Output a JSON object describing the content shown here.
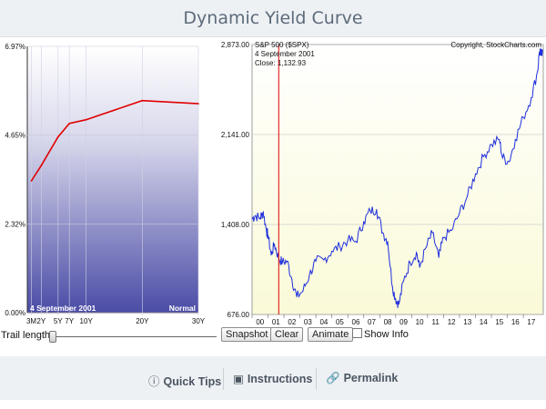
{
  "page": {
    "title": "Dynamic Yield Curve"
  },
  "yield_chart": {
    "y_ticks": [
      "6.97%",
      "4.65%",
      "2.32%",
      "0.00%"
    ],
    "maturities": [
      "3M",
      "2Y",
      "5Y",
      "7Y",
      "10Y",
      "20Y",
      "30Y"
    ],
    "date_label": "4  September 2001",
    "curve_label": "Normal",
    "curve_color": "#e00000"
  },
  "sp_chart": {
    "title": "S&P 500 ($SPX)",
    "copyright": "Copyright, StockCharts.com",
    "date_text": "4  September 2001",
    "close_text": "Close: 1,132.93",
    "y_ticks": [
      "2,873.00",
      "2,141.00",
      "1,408.00",
      "676.00"
    ],
    "x_ticks": [
      "00",
      "01",
      "02",
      "03",
      "04",
      "05",
      "06",
      "07",
      "08",
      "09",
      "10",
      "11",
      "12",
      "13",
      "14",
      "15",
      "16",
      "17"
    ],
    "line_color": "#1f2fdc",
    "marker_color": "#e00000"
  },
  "chart_data": [
    {
      "type": "line",
      "ylim": [
        0,
        6.97
      ],
      "categories": [
        "3M",
        "2Y",
        "5Y",
        "7Y",
        "10Y",
        "20Y",
        "30Y"
      ],
      "series": [
        {
          "values": [
            3.45,
            3.85,
            4.6,
            4.95,
            5.05,
            5.55,
            5.47
          ]
        }
      ]
    },
    {
      "type": "line",
      "title": "S&P 500 ($SPX)",
      "ylim": [
        676,
        2873
      ],
      "x": [
        2000,
        2000.2,
        2000.5,
        2000.7,
        2000.9,
        2001.0,
        2001.2,
        2001.4,
        2001.67,
        2001.9,
        2002.2,
        2002.5,
        2002.8,
        2003.2,
        2003.6,
        2004.0,
        2004.5,
        2005.0,
        2005.5,
        2006.0,
        2006.5,
        2007.0,
        2007.4,
        2007.8,
        2008.2,
        2008.5,
        2008.8,
        2009.0,
        2009.2,
        2009.5,
        2009.9,
        2010.3,
        2010.5,
        2010.9,
        2011.3,
        2011.7,
        2012.0,
        2012.5,
        2013.0,
        2013.5,
        2014.0,
        2014.5,
        2015.0,
        2015.5,
        2015.7,
        2016.1,
        2016.5,
        2017.0,
        2017.5,
        2017.9,
        2018.0,
        2018.1,
        2018.2
      ],
      "series": [
        {
          "values": [
            1455,
            1480,
            1460,
            1510,
            1360,
            1320,
            1160,
            1250,
            1132.93,
            1100,
            1110,
            960,
            820,
            870,
            1000,
            1110,
            1120,
            1190,
            1230,
            1280,
            1270,
            1430,
            1520,
            1530,
            1340,
            1270,
            900,
            800,
            760,
            950,
            1100,
            1180,
            1060,
            1220,
            1340,
            1140,
            1300,
            1360,
            1500,
            1640,
            1820,
            1960,
            2060,
            2100,
            1950,
            1920,
            2100,
            2280,
            2440,
            2660,
            2810,
            2790,
            2830
          ]
        }
      ]
    }
  ],
  "controls": {
    "trail_label": "Trail length:",
    "snapshot": "Snapshot",
    "clear": "Clear",
    "animate": "Animate",
    "show_info": "Show Info"
  },
  "footer": {
    "quick_tips": "Quick Tips",
    "quick_tips_icon": "info-icon",
    "instructions": "Instructions",
    "instructions_icon": "book-icon",
    "permalink": "Permalink",
    "permalink_icon": "link-icon"
  }
}
